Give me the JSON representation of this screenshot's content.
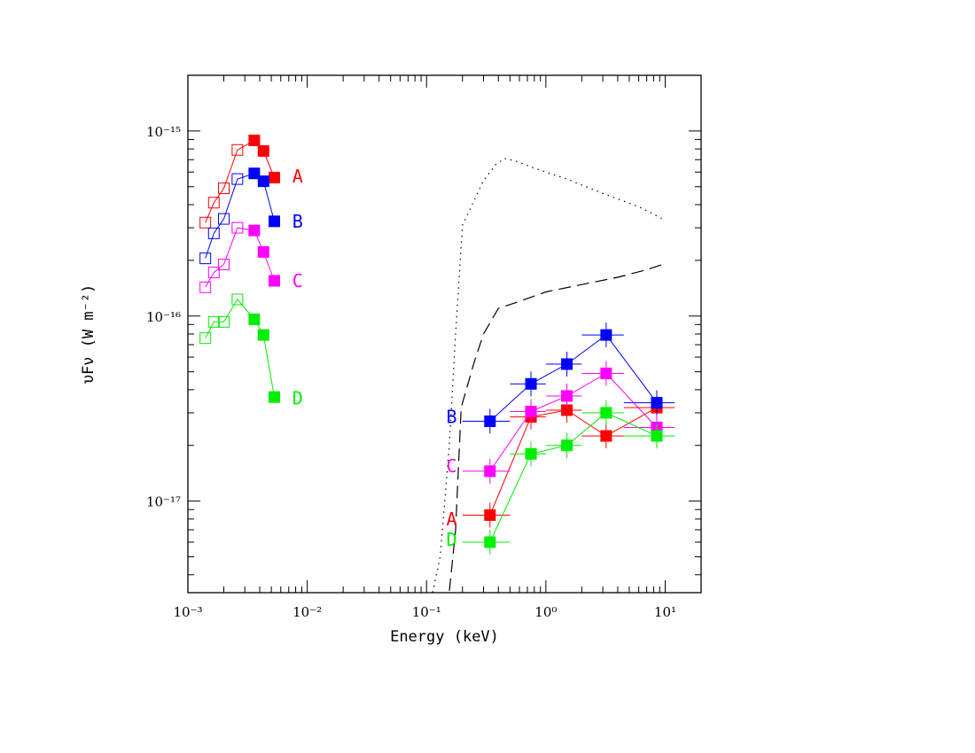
{
  "chart_data": {
    "type": "scatter",
    "title": "",
    "xlabel": "Energy (keV)",
    "ylabel": "υFν (W m⁻²)",
    "xscale": "log",
    "yscale": "log",
    "xlim": [
      0.001,
      20
    ],
    "ylim": [
      3.2e-18,
      2e-15
    ],
    "grid": false,
    "x_ticks": [
      {
        "value": 0.001,
        "label": "10⁻³"
      },
      {
        "value": 0.01,
        "label": "10⁻²"
      },
      {
        "value": 0.1,
        "label": "10⁻¹"
      },
      {
        "value": 1,
        "label": "10⁰"
      },
      {
        "value": 10,
        "label": "10¹"
      }
    ],
    "y_ticks": [
      {
        "value": 1e-17,
        "label": "10⁻¹⁷"
      },
      {
        "value": 1e-16,
        "label": "10⁻¹⁶"
      },
      {
        "value": 1e-15,
        "label": "10⁻¹⁵"
      }
    ],
    "series": [
      {
        "name": "A",
        "color": "#ff0000",
        "optical_open": [
          [
            0.0014,
            3.2e-16
          ],
          [
            0.00165,
            4.1e-16
          ],
          [
            0.002,
            4.9e-16
          ],
          [
            0.0026,
            7.9e-16
          ]
        ],
        "optical_filled": [
          [
            0.0036,
            8.9e-16
          ],
          [
            0.0043,
            7.8e-16
          ],
          [
            0.0053,
            5.6e-16
          ]
        ],
        "xray": [
          [
            0.34,
            8.4e-18
          ],
          [
            0.75,
            2.85e-17
          ],
          [
            1.5,
            3.1e-17
          ],
          [
            3.2,
            2.25e-17
          ],
          [
            8.5,
            3.2e-17
          ]
        ],
        "optical_label_pos": [
          0.0075,
          5.7e-16
        ],
        "xray_label_pos": [
          0.18,
          8e-18
        ]
      },
      {
        "name": "B",
        "color": "#0000ff",
        "optical_open": [
          [
            0.0014,
            2.05e-16
          ],
          [
            0.00165,
            2.8e-16
          ],
          [
            0.002,
            3.35e-16
          ],
          [
            0.0026,
            5.5e-16
          ]
        ],
        "optical_filled": [
          [
            0.0036,
            5.9e-16
          ],
          [
            0.0043,
            5.35e-16
          ],
          [
            0.0053,
            3.25e-16
          ]
        ],
        "xray": [
          [
            0.34,
            2.7e-17
          ],
          [
            0.75,
            4.3e-17
          ],
          [
            1.5,
            5.5e-17
          ],
          [
            3.2,
            7.9e-17
          ],
          [
            8.5,
            3.4e-17
          ]
        ],
        "optical_label_pos": [
          0.0075,
          3.25e-16
        ],
        "xray_label_pos": [
          0.18,
          2.85e-17
        ]
      },
      {
        "name": "C",
        "color": "#ff00ff",
        "optical_open": [
          [
            0.0014,
            1.43e-16
          ],
          [
            0.00165,
            1.72e-16
          ],
          [
            0.002,
            1.9e-16
          ],
          [
            0.0026,
            3e-16
          ]
        ],
        "optical_filled": [
          [
            0.0036,
            2.9e-16
          ],
          [
            0.0043,
            2.22e-16
          ],
          [
            0.0053,
            1.55e-16
          ]
        ],
        "xray": [
          [
            0.34,
            1.45e-17
          ],
          [
            0.75,
            3.05e-17
          ],
          [
            1.5,
            3.7e-17
          ],
          [
            3.2,
            4.9e-17
          ],
          [
            8.5,
            2.5e-17
          ]
        ],
        "optical_label_pos": [
          0.0075,
          1.55e-16
        ],
        "xray_label_pos": [
          0.18,
          1.55e-17
        ]
      },
      {
        "name": "D",
        "color": "#00ee00",
        "optical_open": [
          [
            0.0014,
            7.6e-17
          ],
          [
            0.00165,
            9.3e-17
          ],
          [
            0.002,
            9.3e-17
          ],
          [
            0.0026,
            1.23e-16
          ]
        ],
        "optical_filled": [
          [
            0.0036,
            9.6e-17
          ],
          [
            0.0043,
            7.9e-17
          ],
          [
            0.0053,
            3.65e-17
          ]
        ],
        "xray": [
          [
            0.34,
            6e-18
          ],
          [
            0.75,
            1.8e-17
          ],
          [
            1.5,
            2e-17
          ],
          [
            3.2,
            3e-17
          ],
          [
            8.5,
            2.25e-17
          ]
        ],
        "optical_label_pos": [
          0.0075,
          3.6e-17
        ],
        "xray_label_pos": [
          0.18,
          6.2e-18
        ]
      }
    ],
    "xray_bin_edges": [
      [
        0.2,
        0.5
      ],
      [
        0.5,
        1.0
      ],
      [
        1.0,
        2.0
      ],
      [
        2.0,
        4.5
      ],
      [
        4.5,
        12.0
      ]
    ],
    "curves": [
      {
        "name": "",
        "style": "dotted",
        "points": [
          [
            0.105,
            2.6e-18
          ],
          [
            0.13,
            5e-18
          ],
          [
            0.155,
            2e-17
          ],
          [
            0.175,
            8e-17
          ],
          [
            0.2,
            3.1e-16
          ],
          [
            0.25,
            4.2e-16
          ],
          [
            0.3,
            5.4e-16
          ],
          [
            0.38,
            6.6e-16
          ],
          [
            0.45,
            7.1e-16
          ],
          [
            0.55,
            6.9e-16
          ],
          [
            0.8,
            6.3e-16
          ],
          [
            1.5,
            5.5e-16
          ],
          [
            3,
            4.6e-16
          ],
          [
            6,
            3.9e-16
          ],
          [
            10,
            3.3e-16
          ]
        ]
      },
      {
        "name": "",
        "style": "dashed",
        "points": [
          [
            0.15,
            2.6e-18
          ],
          [
            0.175,
            7e-18
          ],
          [
            0.195,
            3.2e-17
          ],
          [
            0.25,
            5.6e-17
          ],
          [
            0.3,
            8e-17
          ],
          [
            0.4,
            1.1e-16
          ],
          [
            0.6,
            1.2e-16
          ],
          [
            1.0,
            1.35e-16
          ],
          [
            2.0,
            1.48e-16
          ],
          [
            4.0,
            1.62e-16
          ],
          [
            7.0,
            1.78e-16
          ],
          [
            10.0,
            1.92e-16
          ]
        ]
      }
    ]
  }
}
